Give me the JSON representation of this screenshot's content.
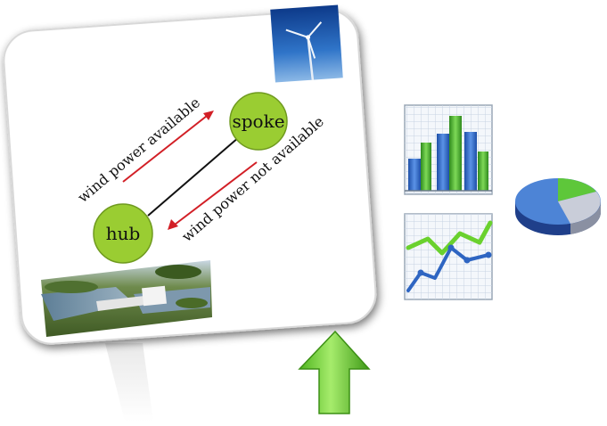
{
  "diagram": {
    "nodes": {
      "hub": {
        "label": "hub"
      },
      "spoke": {
        "label": "spoke"
      }
    },
    "edges": {
      "available": {
        "label": "wind power available"
      },
      "not_available": {
        "label": "wind power not available"
      }
    }
  },
  "icons": {
    "wind_turbine_photo": "wind-turbine-photo",
    "hydro_dam_photo": "hydro-dam-photo",
    "bar_chart": "bar-chart-icon",
    "line_chart": "line-chart-icon",
    "pie_chart": "pie-chart-icon",
    "arrow": "up-arrow-icon"
  },
  "colors": {
    "node_fill": "#9acd32",
    "arrow_red": "#d21f26",
    "arrow_green": "#6fcf2a"
  }
}
